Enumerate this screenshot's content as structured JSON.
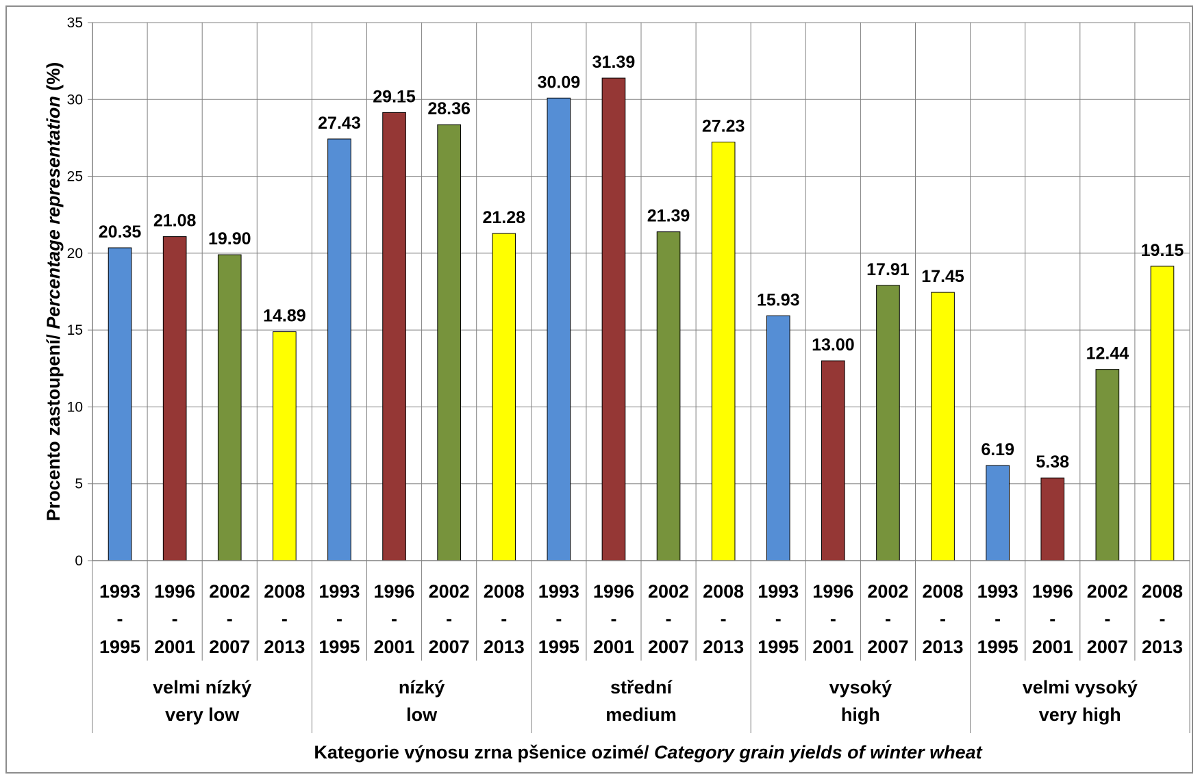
{
  "chart_data": {
    "type": "bar",
    "ylabel": "Procento zastoupení/ Percentage representation (%)",
    "ylabel_parts": [
      "Procento zastoupení/ ",
      "Percentage representation",
      " (%)"
    ],
    "xlabel": "Kategorie výnosu zrna pšenice ozimé/ Category grain yields of winter wheat",
    "xlabel_parts": [
      "Kategorie výnosu zrna pšenice ozimé/ ",
      "Category grain yields of winter wheat"
    ],
    "ylim": [
      0,
      35
    ],
    "yticks": [
      0,
      5,
      10,
      15,
      20,
      25,
      30,
      35
    ],
    "grid": true,
    "legend": "none",
    "periods": [
      {
        "top": "1993",
        "mid": "-",
        "bottom": "1995",
        "color": "#558ed5"
      },
      {
        "top": "1996",
        "mid": "-",
        "bottom": "2001",
        "color": "#953735"
      },
      {
        "top": "2002",
        "mid": "-",
        "bottom": "2007",
        "color": "#77933c"
      },
      {
        "top": "2008",
        "mid": "-",
        "bottom": "2013",
        "color": "#ffff00"
      }
    ],
    "groups": [
      {
        "line1": "velmi nízký",
        "line2": "very low",
        "values": [
          20.35,
          21.08,
          19.9,
          14.89
        ],
        "labels": [
          "20.35",
          "21.08",
          "19.90",
          "14.89"
        ]
      },
      {
        "line1": "nízký",
        "line2": "low",
        "values": [
          27.43,
          29.15,
          28.36,
          21.28
        ],
        "labels": [
          "27.43",
          "29.15",
          "28.36",
          "21.28"
        ]
      },
      {
        "line1": "střední",
        "line2": "medium",
        "values": [
          30.09,
          31.39,
          21.39,
          27.23
        ],
        "labels": [
          "30.09",
          "31.39",
          "21.39",
          "27.23"
        ]
      },
      {
        "line1": "vysoký",
        "line2": "high",
        "values": [
          15.93,
          13.0,
          17.91,
          17.45
        ],
        "labels": [
          "15.93",
          "13.00",
          "17.91",
          "17.45"
        ]
      },
      {
        "line1": "velmi vysoký",
        "line2": "very high",
        "values": [
          6.19,
          5.38,
          12.44,
          19.15
        ],
        "labels": [
          "6.19",
          "5.38",
          "12.44",
          "19.15"
        ]
      }
    ],
    "colors": {
      "grid": "#808080",
      "bar_stroke": "#000000"
    }
  }
}
